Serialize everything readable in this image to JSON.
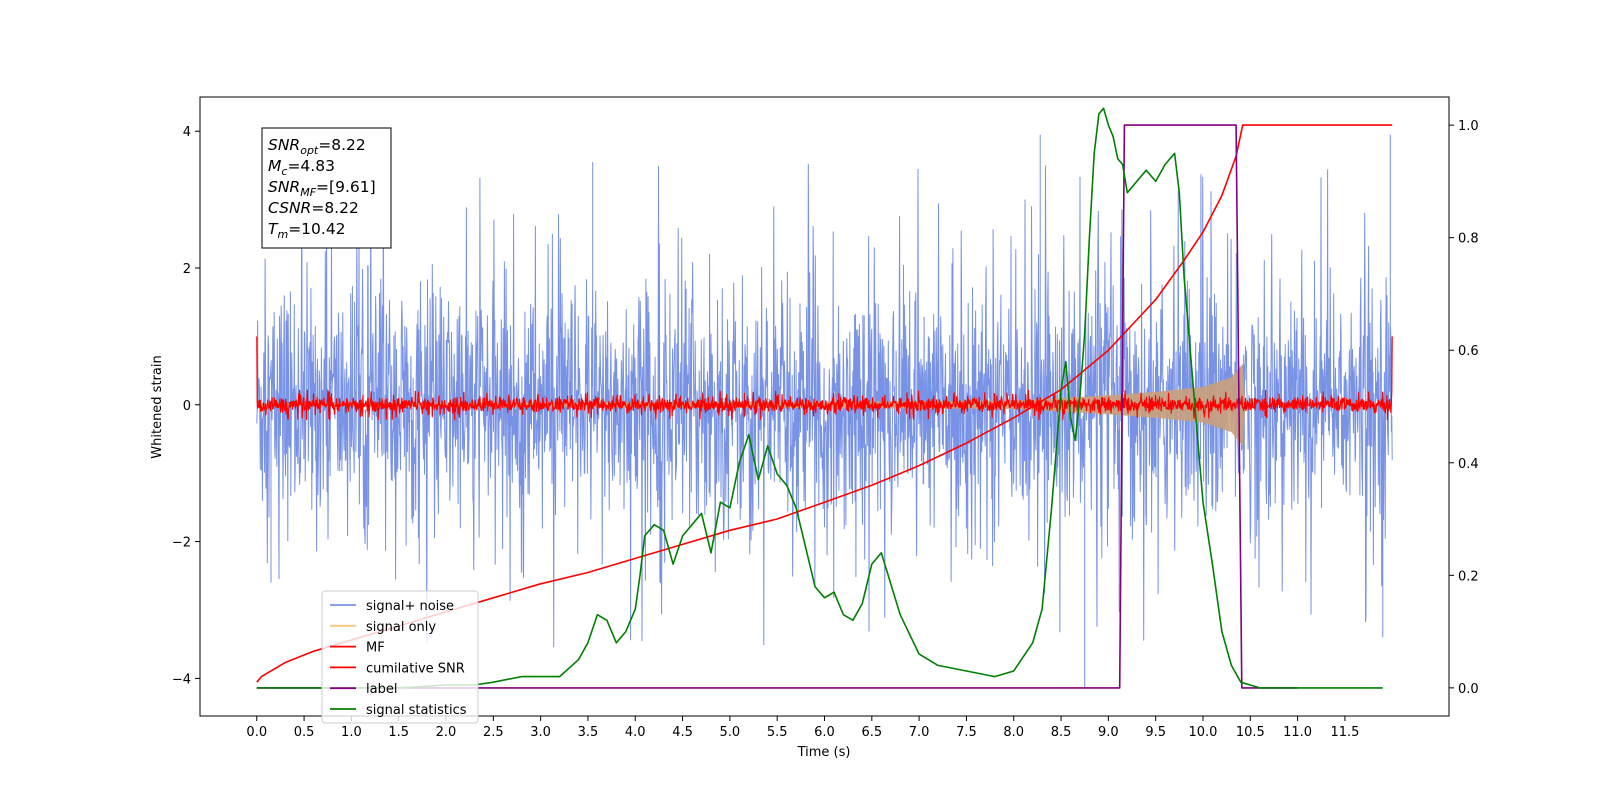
{
  "chart_data": {
    "type": "line",
    "xlabel": "Time (s)",
    "ylabel_left": "Whitened strain",
    "ylabel_right": "",
    "xlim": [
      -0.6,
      12.6
    ],
    "ylim_left": [
      -4.55,
      4.5
    ],
    "ylim_right": [
      -0.05,
      1.05
    ],
    "x_ticks": [
      0.0,
      0.5,
      1.0,
      1.5,
      2.0,
      2.5,
      3.0,
      3.5,
      4.0,
      4.5,
      5.0,
      5.5,
      6.0,
      6.5,
      7.0,
      7.5,
      8.0,
      8.5,
      9.0,
      9.5,
      10.0,
      10.5,
      11.0,
      11.5
    ],
    "x_tick_labels": [
      "0.0",
      "0.5",
      "1.0",
      "1.5",
      "2.0",
      "2.5",
      "3.0",
      "3.5",
      "4.0",
      "4.5",
      "5.0",
      "5.5",
      "6.0",
      "6.5",
      "7.0",
      "7.5",
      "8.0",
      "8.5",
      "9.0",
      "9.5",
      "10.0",
      "10.5",
      "11.0",
      "11.5"
    ],
    "y_ticks_left": [
      -4,
      -2,
      0,
      2,
      4
    ],
    "y_tick_labels_left": [
      "−4",
      "−2",
      "0",
      "2",
      "4"
    ],
    "y_ticks_right": [
      0.0,
      0.2,
      0.4,
      0.6,
      0.8,
      1.0
    ],
    "y_tick_labels_right": [
      "0.0",
      "0.2",
      "0.4",
      "0.6",
      "0.8",
      "1.0"
    ],
    "grid": false,
    "legend_placement": "lower-left",
    "annotation": {
      "lines": [
        {
          "base": "SNR",
          "sub": "opt",
          "value": "=8.22"
        },
        {
          "base": "M",
          "sub": "c",
          "value": "=4.83"
        },
        {
          "base": "SNR",
          "sub": "MF",
          "value": "=[9.61]"
        },
        {
          "base": "CSNR",
          "sub": "",
          "value": "=8.22"
        },
        {
          "base": "T",
          "sub": "m",
          "value": "=10.42"
        }
      ]
    },
    "series": [
      {
        "name": "signal+ noise",
        "axis": "left",
        "color": "#7892e6",
        "kind": "noise-band",
        "x_range": [
          0.0,
          12.0
        ],
        "typical_amplitude": 1.6,
        "peak_max": 3.95,
        "peak_min": -4.15
      },
      {
        "name": "signal only",
        "axis": "left",
        "color": "#f5c87a",
        "kind": "chirp",
        "x": [
          0.0,
          8.0,
          8.5,
          9.0,
          9.5,
          10.0,
          10.3,
          10.42,
          10.45,
          12.0
        ],
        "envelope": [
          0.02,
          0.06,
          0.1,
          0.14,
          0.19,
          0.26,
          0.4,
          0.6,
          0.0,
          0.0
        ]
      },
      {
        "name": "MF",
        "axis": "left",
        "color": "#ff0000",
        "kind": "noise-band",
        "x_range": [
          0.0,
          12.0
        ],
        "typical_amplitude": 0.1,
        "peak_max": 0.3,
        "edge_spike": 1.0
      },
      {
        "name": "cumilative SNR",
        "axis": "right",
        "color": "#ff0000",
        "x": [
          0.0,
          0.05,
          0.3,
          0.6,
          1.0,
          1.5,
          2.0,
          2.5,
          3.0,
          3.5,
          4.0,
          4.5,
          5.0,
          5.5,
          6.0,
          6.5,
          7.0,
          7.5,
          8.0,
          8.5,
          9.0,
          9.5,
          9.8,
          10.0,
          10.2,
          10.35,
          10.42,
          12.0
        ],
        "values": [
          0.01,
          0.02,
          0.045,
          0.065,
          0.085,
          0.11,
          0.135,
          0.16,
          0.185,
          0.205,
          0.23,
          0.255,
          0.28,
          0.3,
          0.33,
          0.36,
          0.395,
          0.435,
          0.48,
          0.53,
          0.6,
          0.69,
          0.76,
          0.81,
          0.875,
          0.945,
          1.0,
          1.0
        ]
      },
      {
        "name": "label",
        "axis": "right",
        "color": "#800080",
        "x": [
          0.0,
          9.12,
          9.17,
          10.35,
          10.41,
          11.0
        ],
        "values": [
          0.0,
          0.0,
          1.0,
          1.0,
          0.0,
          0.0
        ]
      },
      {
        "name": "signal statistics",
        "axis": "right",
        "color": "#008000",
        "x": [
          0.0,
          0.5,
          1.0,
          1.5,
          2.0,
          2.3,
          2.5,
          2.8,
          3.0,
          3.2,
          3.4,
          3.5,
          3.6,
          3.7,
          3.8,
          3.9,
          4.0,
          4.05,
          4.1,
          4.2,
          4.3,
          4.4,
          4.5,
          4.6,
          4.7,
          4.8,
          4.9,
          5.0,
          5.1,
          5.2,
          5.3,
          5.4,
          5.5,
          5.6,
          5.7,
          5.8,
          5.9,
          6.0,
          6.1,
          6.2,
          6.3,
          6.4,
          6.5,
          6.6,
          6.8,
          7.0,
          7.2,
          7.5,
          7.8,
          8.0,
          8.2,
          8.3,
          8.4,
          8.5,
          8.55,
          8.6,
          8.65,
          8.7,
          8.75,
          8.8,
          8.85,
          8.9,
          8.95,
          9.0,
          9.05,
          9.1,
          9.15,
          9.2,
          9.3,
          9.4,
          9.5,
          9.6,
          9.7,
          9.75,
          9.8,
          9.9,
          10.0,
          10.1,
          10.2,
          10.3,
          10.4,
          10.6,
          10.8,
          11.0,
          11.5,
          11.9
        ],
        "values": [
          0.0,
          0.0,
          0.0,
          0.0,
          0.005,
          0.005,
          0.01,
          0.02,
          0.02,
          0.02,
          0.05,
          0.08,
          0.13,
          0.12,
          0.08,
          0.1,
          0.14,
          0.2,
          0.27,
          0.29,
          0.28,
          0.22,
          0.27,
          0.29,
          0.31,
          0.24,
          0.33,
          0.32,
          0.4,
          0.45,
          0.37,
          0.43,
          0.38,
          0.36,
          0.32,
          0.25,
          0.18,
          0.16,
          0.17,
          0.13,
          0.12,
          0.15,
          0.22,
          0.24,
          0.13,
          0.06,
          0.04,
          0.03,
          0.02,
          0.03,
          0.08,
          0.14,
          0.32,
          0.53,
          0.58,
          0.48,
          0.44,
          0.52,
          0.63,
          0.8,
          0.95,
          1.02,
          1.03,
          1.0,
          0.98,
          0.94,
          0.93,
          0.88,
          0.9,
          0.92,
          0.9,
          0.93,
          0.95,
          0.88,
          0.73,
          0.53,
          0.33,
          0.22,
          0.1,
          0.04,
          0.01,
          0.0,
          0.0,
          0.0,
          0.0,
          0.0
        ]
      }
    ]
  }
}
